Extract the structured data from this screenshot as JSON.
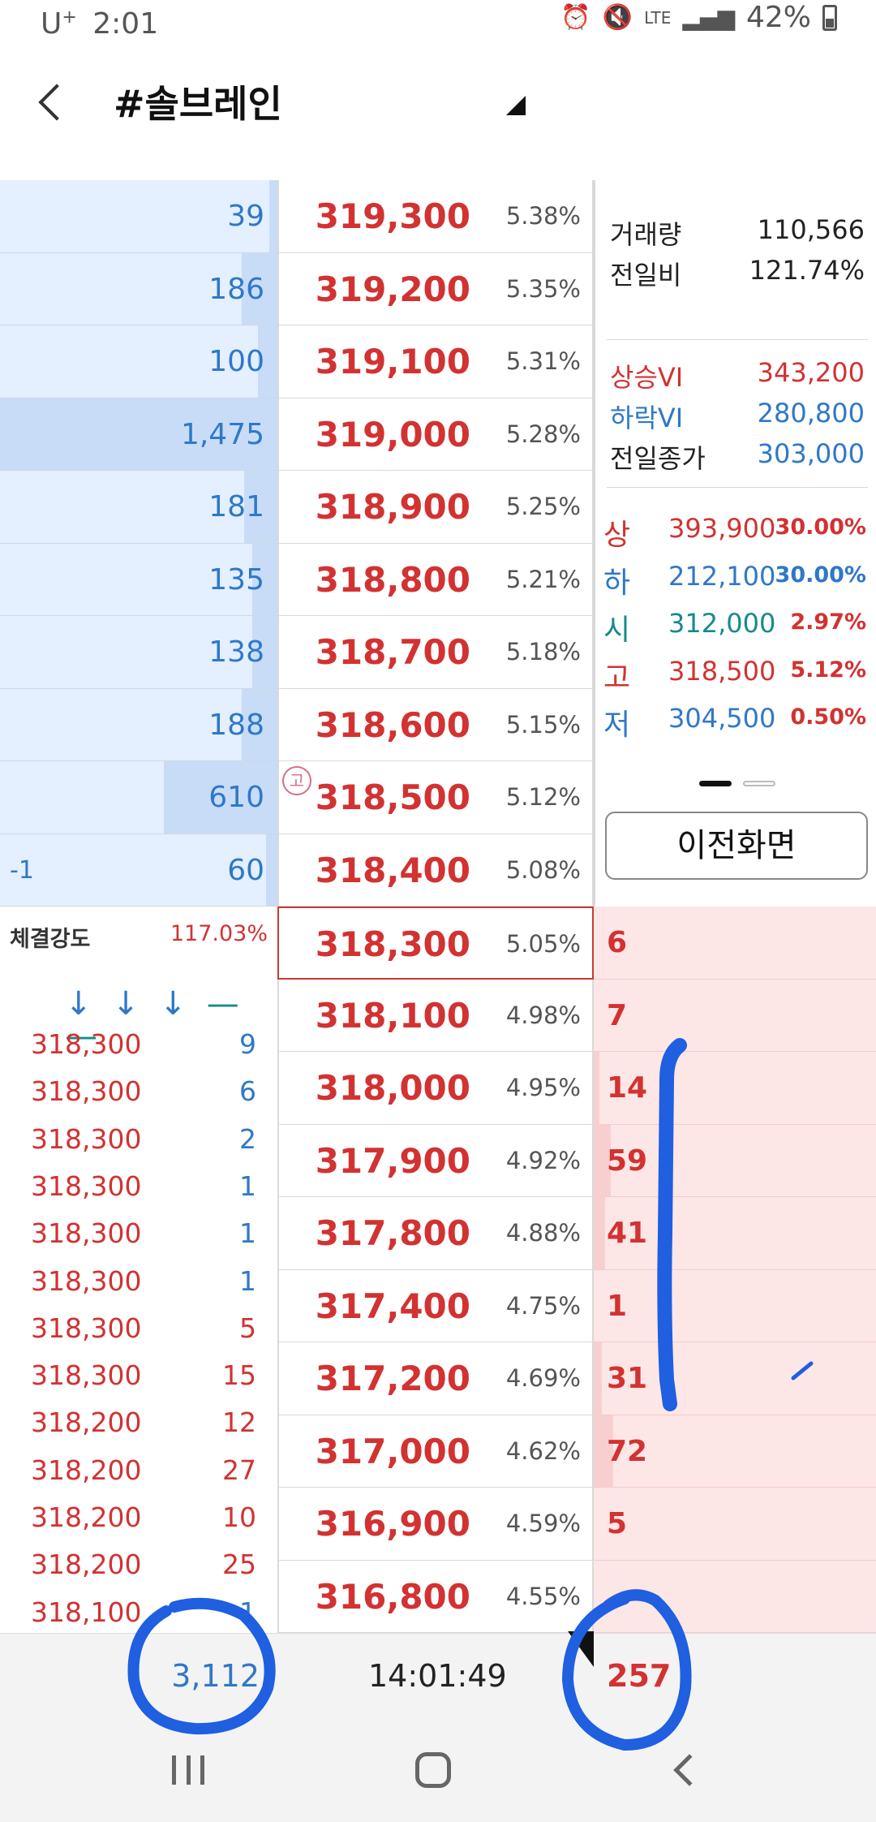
{
  "status_bar": {
    "carrier": "U",
    "carrier_sup": "+",
    "time": "2:01",
    "network": "LTE",
    "battery": "42%"
  },
  "header": {
    "back_glyph": "<",
    "title": "#솔브레인"
  },
  "asks": [
    {
      "volume": "39",
      "price": "319,300",
      "pct": "5.38%",
      "bar": 0.03
    },
    {
      "volume": "186",
      "price": "319,200",
      "pct": "5.35%",
      "bar": 0.13
    },
    {
      "volume": "100",
      "price": "319,100",
      "pct": "5.31%",
      "bar": 0.07
    },
    {
      "volume": "1,475",
      "price": "319,000",
      "pct": "5.28%",
      "bar": 1.0
    },
    {
      "volume": "181",
      "price": "318,900",
      "pct": "5.25%",
      "bar": 0.12
    },
    {
      "volume": "135",
      "price": "318,800",
      "pct": "5.21%",
      "bar": 0.09
    },
    {
      "volume": "138",
      "price": "318,700",
      "pct": "5.18%",
      "bar": 0.09
    },
    {
      "volume": "188",
      "price": "318,600",
      "pct": "5.15%",
      "bar": 0.13
    },
    {
      "volume": "610",
      "price": "318,500",
      "pct": "5.12%",
      "bar": 0.41,
      "mark": "고"
    },
    {
      "volume": "60",
      "price": "318,400",
      "pct": "5.08%",
      "bar": 0.04,
      "left": "-1"
    }
  ],
  "bids": [
    {
      "price": "318,300",
      "pct": "5.05%",
      "volume": "6",
      "bar": 0.0,
      "current": true
    },
    {
      "price": "318,100",
      "pct": "4.98%",
      "volume": "7",
      "bar": 0.0
    },
    {
      "price": "318,000",
      "pct": "4.95%",
      "volume": "14",
      "bar": 0.02
    },
    {
      "price": "317,900",
      "pct": "4.92%",
      "volume": "59",
      "bar": 0.06
    },
    {
      "price": "317,800",
      "pct": "4.88%",
      "volume": "41",
      "bar": 0.04
    },
    {
      "price": "317,400",
      "pct": "4.75%",
      "volume": "1",
      "bar": 0.0
    },
    {
      "price": "317,200",
      "pct": "4.69%",
      "volume": "31",
      "bar": 0.03
    },
    {
      "price": "317,000",
      "pct": "4.62%",
      "volume": "72",
      "bar": 0.07
    },
    {
      "price": "316,900",
      "pct": "4.59%",
      "volume": "5",
      "bar": 0.0
    },
    {
      "price": "316,800",
      "pct": "4.55%",
      "volume": "",
      "bar": 0.0
    }
  ],
  "info": {
    "volume_label": "거래량",
    "volume_value": "110,566",
    "prev_ratio_label": "전일비",
    "prev_ratio_value": "121.74%",
    "vi_up_label": "상승VI",
    "vi_up_value": "343,200",
    "vi_down_label": "하락VI",
    "vi_down_value": "280,800",
    "prev_close_label": "전일종가",
    "prev_close_value": "303,000",
    "limits": [
      {
        "label": "상",
        "price": "393,900",
        "pct": "30.00%",
        "color": "#d23232",
        "pct_color": "#d23232"
      },
      {
        "label": "하",
        "price": "212,100",
        "pct": "30.00%",
        "color": "#2f78c8",
        "pct_color": "#2f78c8"
      },
      {
        "label": "시",
        "price": "312,000",
        "pct": "2.97%",
        "color": "#178a8a",
        "pct_color": "#d23232"
      },
      {
        "label": "고",
        "price": "318,500",
        "pct": "5.12%",
        "color": "#d23232",
        "pct_color": "#d23232"
      },
      {
        "label": "저",
        "price": "304,500",
        "pct": "0.50%",
        "color": "#2f78c8",
        "pct_color": "#d23232"
      }
    ],
    "prev_screen_label": "이전화면"
  },
  "trades": {
    "strength_label": "체결강도",
    "strength_value": "117.03%",
    "arrows_blue": "↓ ↓ ↓",
    "arrows_green": "— —",
    "ticks": [
      {
        "price": "318,300",
        "qty": "9",
        "qty_color": "#2f78c8"
      },
      {
        "price": "318,300",
        "qty": "6",
        "qty_color": "#2f78c8"
      },
      {
        "price": "318,300",
        "qty": "2",
        "qty_color": "#2f78c8"
      },
      {
        "price": "318,300",
        "qty": "1",
        "qty_color": "#2f78c8"
      },
      {
        "price": "318,300",
        "qty": "1",
        "qty_color": "#2f78c8"
      },
      {
        "price": "318,300",
        "qty": "1",
        "qty_color": "#2f78c8"
      },
      {
        "price": "318,300",
        "qty": "5",
        "qty_color": "#d23232"
      },
      {
        "price": "318,300",
        "qty": "15",
        "qty_color": "#d23232"
      },
      {
        "price": "318,200",
        "qty": "12",
        "qty_color": "#d23232"
      },
      {
        "price": "318,200",
        "qty": "27",
        "qty_color": "#d23232"
      },
      {
        "price": "318,200",
        "qty": "10",
        "qty_color": "#d23232"
      },
      {
        "price": "318,200",
        "qty": "25",
        "qty_color": "#d23232"
      },
      {
        "price": "318,100",
        "qty": "1",
        "qty_color": "#2f78c8"
      }
    ]
  },
  "footer": {
    "total_ask": "3,112",
    "time": "14:01:49",
    "total_bid": "257"
  },
  "colors": {
    "up": "#d23232",
    "down": "#2f78c8",
    "ask_bg": "#e4efff",
    "bid_bg": "#fde6e6",
    "ink": "#1f5fe0"
  },
  "icons": [
    "alarm-icon",
    "mute-icon",
    "lte-icon",
    "signal-icon",
    "battery-icon",
    "back-chevron-icon",
    "dropdown-triangle-icon",
    "high-price-badge-icon",
    "nav-recent-icon",
    "nav-home-icon",
    "nav-back-icon"
  ]
}
